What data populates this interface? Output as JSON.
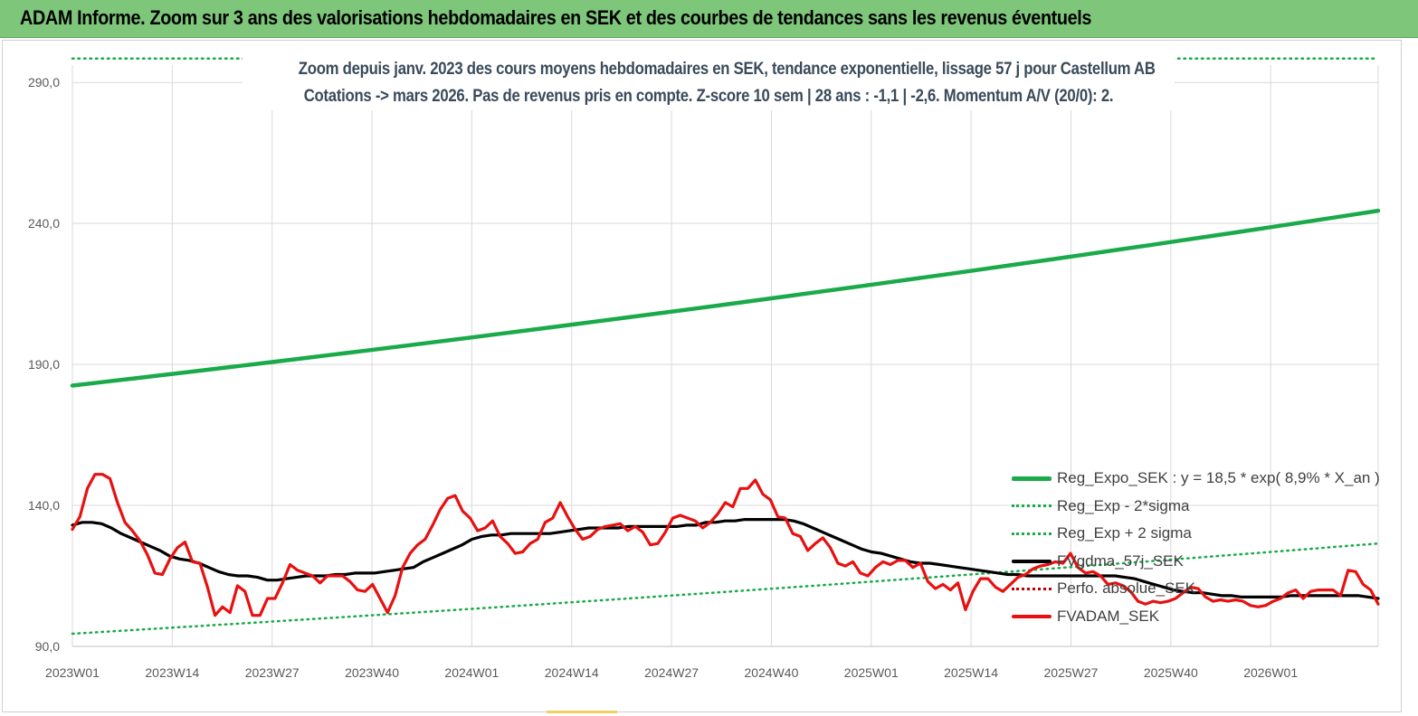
{
  "header": {
    "title": "ADAM Informe. Zoom sur 3 ans des valorisations hebdomadaires en SEK et des courbes de tendances sans les revenus éventuels",
    "background": "#7dc67a"
  },
  "chart_data": {
    "type": "line",
    "subtitle_line1": "Zoom depuis janv. 2023 des cours moyens hebdomadaires en SEK, tendance exponentielle, lissage 57 j pour Castellum AB",
    "subtitle_line2": "Cotations -> mars 2026. Pas de revenus pris en compte. Z-score 10 sem  | 28 ans : -1,1  | -2,6. Momentum A/V (20/0): 2.",
    "ylim": [
      90,
      300
    ],
    "y_ticks": [
      "90,0",
      "140,0",
      "190,0",
      "240,0",
      "290,0"
    ],
    "x_ticks": [
      "2023W01",
      "2023W14",
      "2023W27",
      "2023W40",
      "2024W01",
      "2024W14",
      "2024W27",
      "2024W40",
      "2025W01",
      "2025W14",
      "2025W27",
      "2025W40",
      "2026W01"
    ],
    "x_range_weeks": [
      0,
      170
    ],
    "grid": "vertical and horizontal",
    "legend_position": "bottom-right",
    "series": [
      {
        "name": "Reg_Expo_SEK : y = 18,5 * exp( 8,9% *  X_an )",
        "color": "#1aaa4a",
        "style": "solid",
        "values": [
          182.5,
          244.5
        ]
      },
      {
        "name": "Reg_Exp - 2*sigma",
        "color": "#1aaa4a",
        "style": "dotted",
        "values": [
          94.5,
          126.5
        ]
      },
      {
        "name": "Reg_Exp + 2 sigma",
        "color": "#1aaa4a",
        "style": "dotted",
        "values": [
          298.5,
          298.5
        ]
      },
      {
        "name": "FVgdma_57j_SEK",
        "color": "#000000",
        "style": "solid",
        "values": [
          133,
          134,
          134,
          133.5,
          132,
          130,
          128.5,
          127,
          125.5,
          124,
          122,
          121,
          120.5,
          119.5,
          118,
          116.5,
          115.5,
          115,
          115,
          114.5,
          113.5,
          113.5,
          114,
          114.5,
          115,
          115,
          115,
          115.5,
          115.5,
          116,
          116,
          116,
          116.5,
          117,
          117.5,
          118,
          120,
          121.5,
          123,
          124.5,
          126,
          128,
          129,
          129.5,
          129.5,
          130,
          130,
          130,
          130,
          130,
          130.5,
          131,
          131.5,
          132,
          132,
          132,
          132,
          132.5,
          132.5,
          132.5,
          132.5,
          132.5,
          132.5,
          133,
          133,
          134,
          134,
          134.5,
          134.5,
          135,
          135,
          135,
          135,
          135,
          134.5,
          133.5,
          132,
          130.5,
          129,
          127.5,
          126,
          124.5,
          123.5,
          123,
          122,
          121,
          120,
          119.5,
          119.5,
          119,
          118.5,
          118,
          117.5,
          117,
          116.5,
          116,
          115.5,
          115.5,
          115,
          115,
          115,
          115,
          115,
          115,
          115,
          115,
          115,
          115,
          114.5,
          114,
          113,
          112,
          111,
          110,
          109.5,
          109,
          109,
          108.5,
          108,
          108,
          107.5,
          107.5,
          107.5,
          107.5,
          107.5,
          108,
          108,
          108,
          108,
          108,
          108,
          108,
          108,
          107.5,
          107
        ]
      },
      {
        "name": "Perfo. absolue_SEK",
        "color": "#c00000",
        "style": "dotted",
        "values": []
      },
      {
        "name": "FVADAM_SEK",
        "color": "#e81010",
        "style": "solid",
        "values": [
          131.5,
          136,
          146,
          151,
          151,
          149.5,
          141,
          134,
          131,
          127.5,
          122.5,
          116,
          115.5,
          121,
          125,
          127,
          120,
          119.5,
          111,
          101,
          104,
          102,
          111.5,
          109.5,
          101,
          101,
          107,
          107,
          112.5,
          119,
          117,
          116,
          115,
          112.5,
          115,
          115,
          115,
          113,
          110,
          109.5,
          112,
          107,
          102,
          108,
          118,
          123,
          126,
          128,
          133,
          138.5,
          142.5,
          143.5,
          138,
          135.5,
          131,
          132,
          134.5,
          129,
          126.5,
          123,
          123.5,
          126.5,
          128,
          134,
          135.5,
          141,
          136,
          131.5,
          128,
          129,
          131.5,
          132.5,
          133,
          133.5,
          131,
          132.5,
          130.5,
          126,
          126.5,
          130.5,
          135.5,
          136.5,
          135.5,
          134.5,
          132,
          134,
          137,
          141,
          139.5,
          146,
          146,
          149,
          144,
          142,
          136,
          135.5,
          130,
          129,
          124,
          126.5,
          128.5,
          125,
          119.5,
          118.5,
          120,
          116,
          115,
          118,
          120,
          119,
          120.5,
          120.5,
          118,
          119.5,
          113,
          110.5,
          112,
          110,
          112.5,
          103,
          109.5,
          114,
          114,
          111,
          109.5,
          112,
          114.5,
          115.5,
          117.5,
          118.5,
          119,
          120,
          119.5,
          123,
          118,
          116,
          116.5,
          115,
          112,
          112.5,
          111.5,
          109.5,
          106,
          105,
          106,
          105.5,
          106,
          107,
          109,
          111,
          110.5,
          107.5,
          106,
          106.5,
          106,
          106.5,
          106,
          104.5,
          104,
          104.5,
          106,
          107,
          109,
          110,
          107,
          109.5,
          110,
          110,
          110,
          108,
          117,
          116.5,
          112,
          110,
          105
        ]
      }
    ]
  }
}
